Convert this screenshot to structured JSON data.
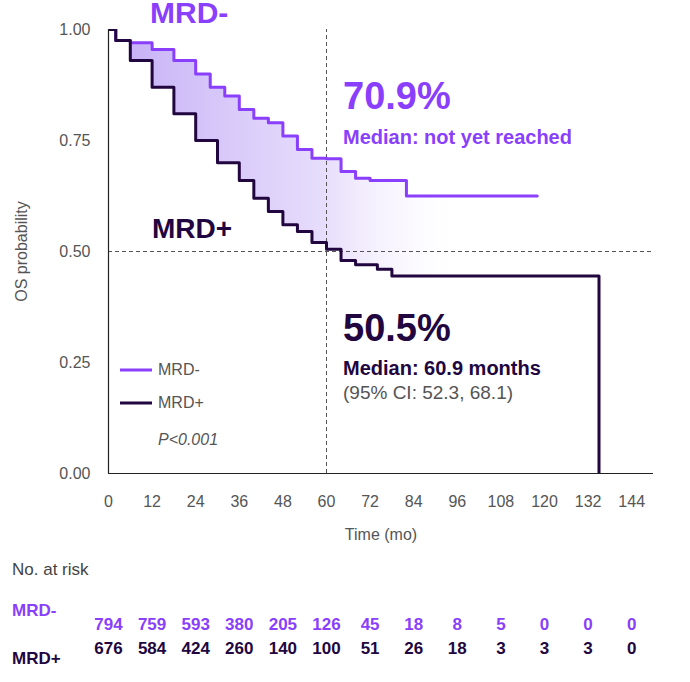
{
  "chart_data": {
    "type": "line",
    "line_style": "step",
    "x_label": "Time (mo)",
    "y_label": "OS probability",
    "xlim": [
      0,
      150
    ],
    "xticks": [
      0,
      12,
      24,
      36,
      48,
      60,
      72,
      84,
      96,
      108,
      120,
      132,
      144
    ],
    "ylim": [
      0,
      1
    ],
    "yticks": [
      {
        "value": 0,
        "label": "0.00"
      },
      {
        "value": 0.25,
        "label": "0.25"
      },
      {
        "value": 0.5,
        "label": "0.50"
      },
      {
        "value": 0.75,
        "label": "0.75"
      },
      {
        "value": 1,
        "label": "1.00"
      }
    ],
    "grid": false,
    "legend": "bottom-left",
    "p_value_label": "P<0.001",
    "reference_x": 60,
    "reference_y": 0.5,
    "series": [
      {
        "name": "MRD-",
        "color": "#8a3ffc",
        "x": [
          0,
          2,
          6,
          12,
          18,
          24,
          28,
          32,
          36,
          40,
          44,
          48,
          52,
          56,
          60,
          64,
          68,
          72,
          82,
          118
        ],
        "values": [
          1,
          0.975,
          0.97,
          0.955,
          0.93,
          0.9,
          0.87,
          0.85,
          0.82,
          0.8,
          0.79,
          0.76,
          0.73,
          0.71,
          0.709,
          0.68,
          0.665,
          0.66,
          0.625,
          0.625
        ],
        "rate_label": "70.9%",
        "median_label": "Median: not yet reached"
      },
      {
        "name": "MRD+",
        "color": "#22063f",
        "x": [
          0,
          2,
          6,
          12,
          18,
          24,
          30,
          36,
          40,
          44,
          48,
          52,
          56,
          60,
          64,
          68,
          74,
          78,
          135
        ],
        "values": [
          1,
          0.975,
          0.93,
          0.87,
          0.81,
          0.75,
          0.7,
          0.66,
          0.62,
          0.59,
          0.56,
          0.545,
          0.52,
          0.505,
          0.48,
          0.47,
          0.46,
          0.445,
          0
        ],
        "rate_label": "50.5%",
        "median_label": "Median: 60.9 months",
        "ci_label": "(95% CI: 52.3, 68.1)"
      }
    ],
    "at_risk": {
      "title": "No. at risk",
      "x": [
        0,
        12,
        24,
        36,
        48,
        60,
        72,
        84,
        96,
        108,
        120,
        132,
        144
      ],
      "series": [
        {
          "name": "MRD-",
          "values": [
            794,
            759,
            593,
            380,
            205,
            126,
            45,
            18,
            8,
            5,
            0,
            0,
            0
          ]
        },
        {
          "name": "MRD+",
          "values": [
            676,
            584,
            424,
            260,
            140,
            100,
            51,
            26,
            18,
            3,
            3,
            3,
            0
          ]
        }
      ]
    }
  }
}
